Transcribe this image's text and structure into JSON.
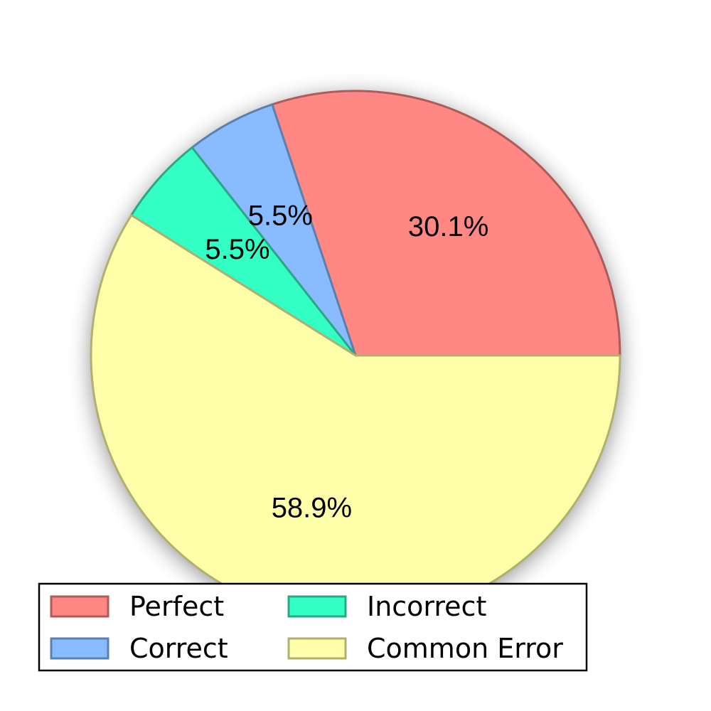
{
  "chart_data": {
    "type": "pie",
    "slices": [
      {
        "name": "Perfect",
        "value": 30.1,
        "label": "30.1%",
        "color": "#ff8884",
        "edge": "#b05a5a"
      },
      {
        "name": "Correct",
        "value": 5.5,
        "label": "5.5%",
        "color": "#88bbff",
        "edge": "#5a80b0"
      },
      {
        "name": "Incorrect",
        "value": 5.5,
        "label": "5.5%",
        "color": "#33ffc4",
        "edge": "#2aa884"
      },
      {
        "name": "Common Error",
        "value": 58.9,
        "label": "58.9%",
        "color": "#ffffaa",
        "edge": "#b0b070"
      }
    ],
    "start_angle_deg": 0,
    "direction": "counterclockwise",
    "legend": {
      "placement": "bottom-center",
      "columns": 2,
      "entries": [
        "Perfect",
        "Correct",
        "Incorrect",
        "Common Error"
      ]
    },
    "shadow": true
  }
}
